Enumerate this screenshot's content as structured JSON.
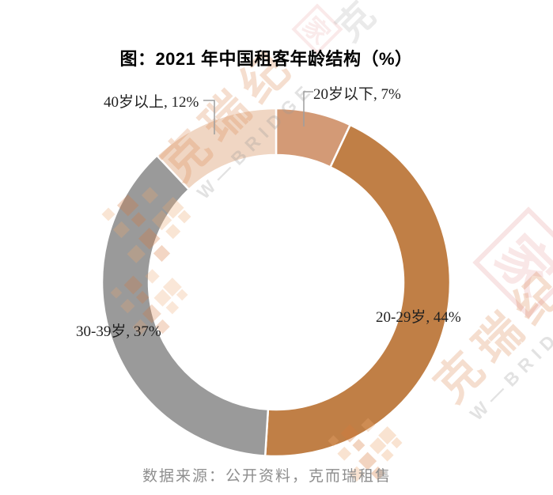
{
  "title": "图：2021 年中国租客年龄结构（%）",
  "source": "数据来源：公开资料，克而瑞租售",
  "watermark": {
    "brand_cn": "克瑞纪",
    "brand_en": "W—BRIDGE",
    "seal_glyph": "家",
    "corner_glyph": "克"
  },
  "chart_data": {
    "type": "pie",
    "subtype": "donut",
    "title": "图：2021 年中国租客年龄结构（%）",
    "categories": [
      "20岁以下",
      "20-29岁",
      "30-39岁",
      "40岁以上"
    ],
    "values": [
      7,
      44,
      37,
      12
    ],
    "unit": "%",
    "series_colors": [
      "#D39A76",
      "#C07F46",
      "#9A9A9A",
      "#F0D6C3"
    ],
    "data_labels": [
      "20岁以下, 7%",
      "20-29岁, 44%",
      "30-39岁, 37%",
      "40岁以上, 12%"
    ],
    "start_angle_deg": 0,
    "direction": "clockwise",
    "donut_hole_ratio": 0.73,
    "legend": "none",
    "data_label_style": "outside, category + percent",
    "source_note": "数据来源：公开资料，克而瑞租售"
  }
}
